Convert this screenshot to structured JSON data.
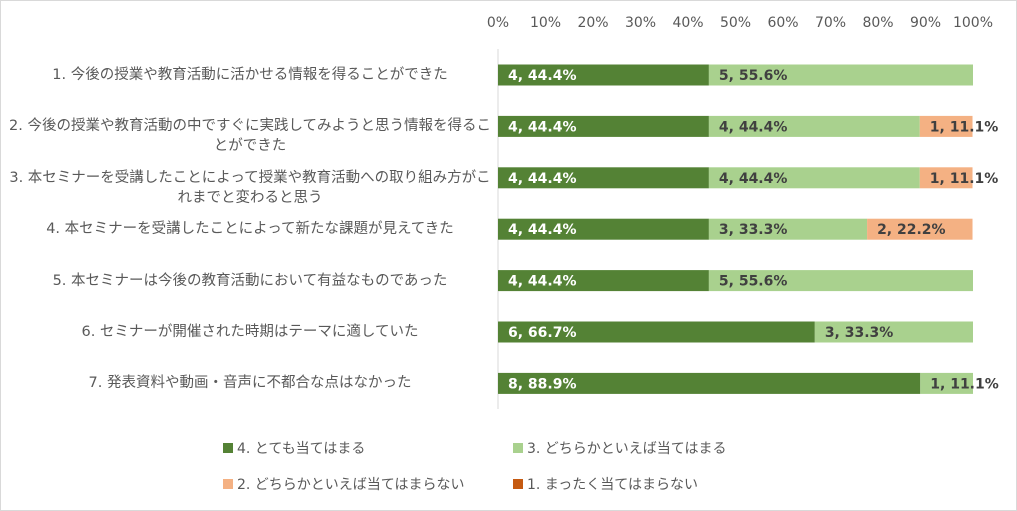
{
  "chart_data": {
    "type": "stacked_bar_horizontal",
    "categories": [
      "1. 今後の授業や教育活動に活かせる情報を得ることができた",
      "2. 今後の授業や教育活動の中ですぐに実践してみようと思う情報を得ることができた",
      "3. 本セミナーを受講したことによって授業や教育活動への取り組み方がこれまでと変わると思う",
      "4. 本セミナーを受講したことによって新たな課題が見えてきた",
      "5. 本セミナーは今後の教育活動において有益なものであった",
      "6. セミナーが開催された時期はテーマに適していた",
      "7. 発表資料や動画・音声に不都合な点はなかった"
    ],
    "series": [
      {
        "name": "4. とても当てはまる",
        "color": "#548235",
        "values": [
          44.4,
          44.4,
          44.4,
          44.4,
          44.4,
          66.7,
          88.9
        ],
        "value_labels": [
          "4, 44.4%",
          "4, 44.4%",
          "4, 44.4%",
          "4, 44.4%",
          "4, 44.4%",
          "6, 66.7%",
          "8, 88.9%"
        ]
      },
      {
        "name": "3. どちらかといえば当てはまる",
        "color": "#a9d18e",
        "values": [
          55.6,
          44.4,
          44.4,
          33.3,
          55.6,
          33.3,
          11.1
        ],
        "value_labels": [
          "5, 55.6%",
          "4, 44.4%",
          "4, 44.4%",
          "3, 33.3%",
          "5, 55.6%",
          "3, 33.3%",
          "1, 11.1%"
        ]
      },
      {
        "name": "2. どちらかといえば当てはまらない",
        "color": "#f4b183",
        "values": [
          null,
          11.1,
          11.1,
          22.2,
          null,
          null,
          null
        ],
        "value_labels": [
          null,
          "1, 11.1%",
          "1, 11.1%",
          "2, 22.2%",
          null,
          null,
          null
        ]
      },
      {
        "name": "1. まったく当てはまらない",
        "color": "#c55a11",
        "values": [
          null,
          null,
          null,
          null,
          null,
          null,
          null
        ]
      }
    ],
    "xlim": [
      0,
      100
    ],
    "xticks": [
      {
        "value": 0,
        "label": "0%"
      },
      {
        "value": 10,
        "label": "10%"
      },
      {
        "value": 20,
        "label": "20%"
      },
      {
        "value": 30,
        "label": "30%"
      },
      {
        "value": 40,
        "label": "40%"
      },
      {
        "value": 50,
        "label": "50%"
      },
      {
        "value": 60,
        "label": "60%"
      },
      {
        "value": 70,
        "label": "70%"
      },
      {
        "value": 80,
        "label": "80%"
      },
      {
        "value": 90,
        "label": "90%"
      },
      {
        "value": 100,
        "label": "100%"
      }
    ],
    "legend": "bottom"
  }
}
